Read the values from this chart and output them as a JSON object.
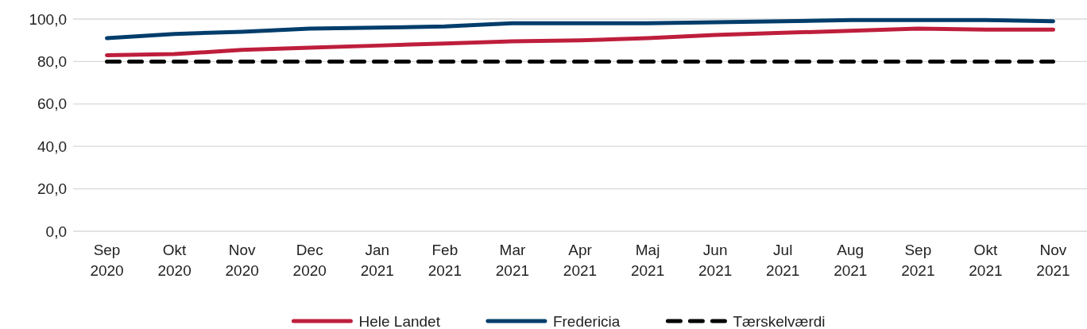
{
  "chart_data": {
    "type": "line",
    "categories": [
      "Sep 2020",
      "Okt 2020",
      "Nov 2020",
      "Dec 2020",
      "Jan 2021",
      "Feb 2021",
      "Mar 2021",
      "Apr 2021",
      "Maj 2021",
      "Jun 2021",
      "Jul 2021",
      "Aug 2021",
      "Sep 2021",
      "Okt 2021",
      "Nov 2021"
    ],
    "series": [
      {
        "name": "Hele Landet",
        "color": "#be1e3c",
        "values": [
          83,
          83.5,
          85.5,
          86.5,
          87.5,
          88.5,
          89.5,
          90,
          91,
          92.5,
          93.5,
          94.5,
          95.5,
          95,
          95
        ]
      },
      {
        "name": "Fredericia",
        "color": "#003d6b",
        "values": [
          91,
          93,
          94,
          95.5,
          96,
          96.5,
          98,
          98,
          98,
          98.5,
          99,
          99.5,
          99.5,
          99.5,
          99
        ]
      },
      {
        "name": "Tærskelværdi",
        "color": "#000000",
        "line_style": "dashed",
        "values": [
          80,
          80,
          80,
          80,
          80,
          80,
          80,
          80,
          80,
          80,
          80,
          80,
          80,
          80,
          80
        ]
      }
    ],
    "ylim": [
      0,
      100
    ],
    "yticks": [
      {
        "value": 0,
        "label": "0,0"
      },
      {
        "value": 20,
        "label": "20,0"
      },
      {
        "value": 40,
        "label": "40,0"
      },
      {
        "value": 60,
        "label": "60,0"
      },
      {
        "value": 80,
        "label": "80,0"
      },
      {
        "value": 100,
        "label": "100,0"
      }
    ],
    "grid": "y",
    "legend": "bottom",
    "marker": "none"
  }
}
